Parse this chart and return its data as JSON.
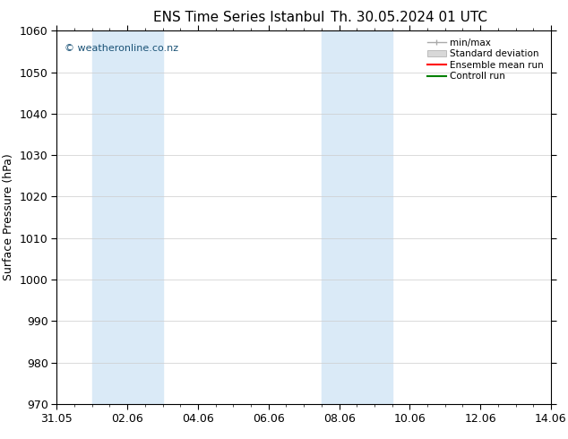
{
  "title_left": "ENS Time Series Istanbul",
  "title_right": "Th. 30.05.2024 01 UTC",
  "ylabel": "Surface Pressure (hPa)",
  "ylim": [
    970,
    1060
  ],
  "yticks": [
    970,
    980,
    990,
    1000,
    1010,
    1020,
    1030,
    1040,
    1050,
    1060
  ],
  "xlim": [
    0,
    14
  ],
  "xtick_labels": [
    "31.05",
    "02.06",
    "04.06",
    "06.06",
    "08.06",
    "10.06",
    "12.06",
    "14.06"
  ],
  "xtick_positions": [
    0,
    2,
    4,
    6,
    8,
    10,
    12,
    14
  ],
  "shaded_bands": [
    {
      "x_start": 1.0,
      "x_end": 3.0,
      "color": "#daeaf7"
    },
    {
      "x_start": 7.5,
      "x_end": 9.5,
      "color": "#daeaf7"
    }
  ],
  "watermark_text": "© weatheronline.co.nz",
  "watermark_color": "#1a5276",
  "legend_items": [
    {
      "label": "min/max",
      "color": "#aaaaaa",
      "lw": 1.2
    },
    {
      "label": "Standard deviation",
      "color": "#cccccc",
      "lw": 6
    },
    {
      "label": "Ensemble mean run",
      "color": "red",
      "lw": 1.5
    },
    {
      "label": "Controll run",
      "color": "green",
      "lw": 1.5
    }
  ],
  "bg_color": "#ffffff",
  "plot_bg_color": "#ffffff",
  "grid_color": "#cccccc",
  "font_size": 9,
  "title_font_size": 11
}
